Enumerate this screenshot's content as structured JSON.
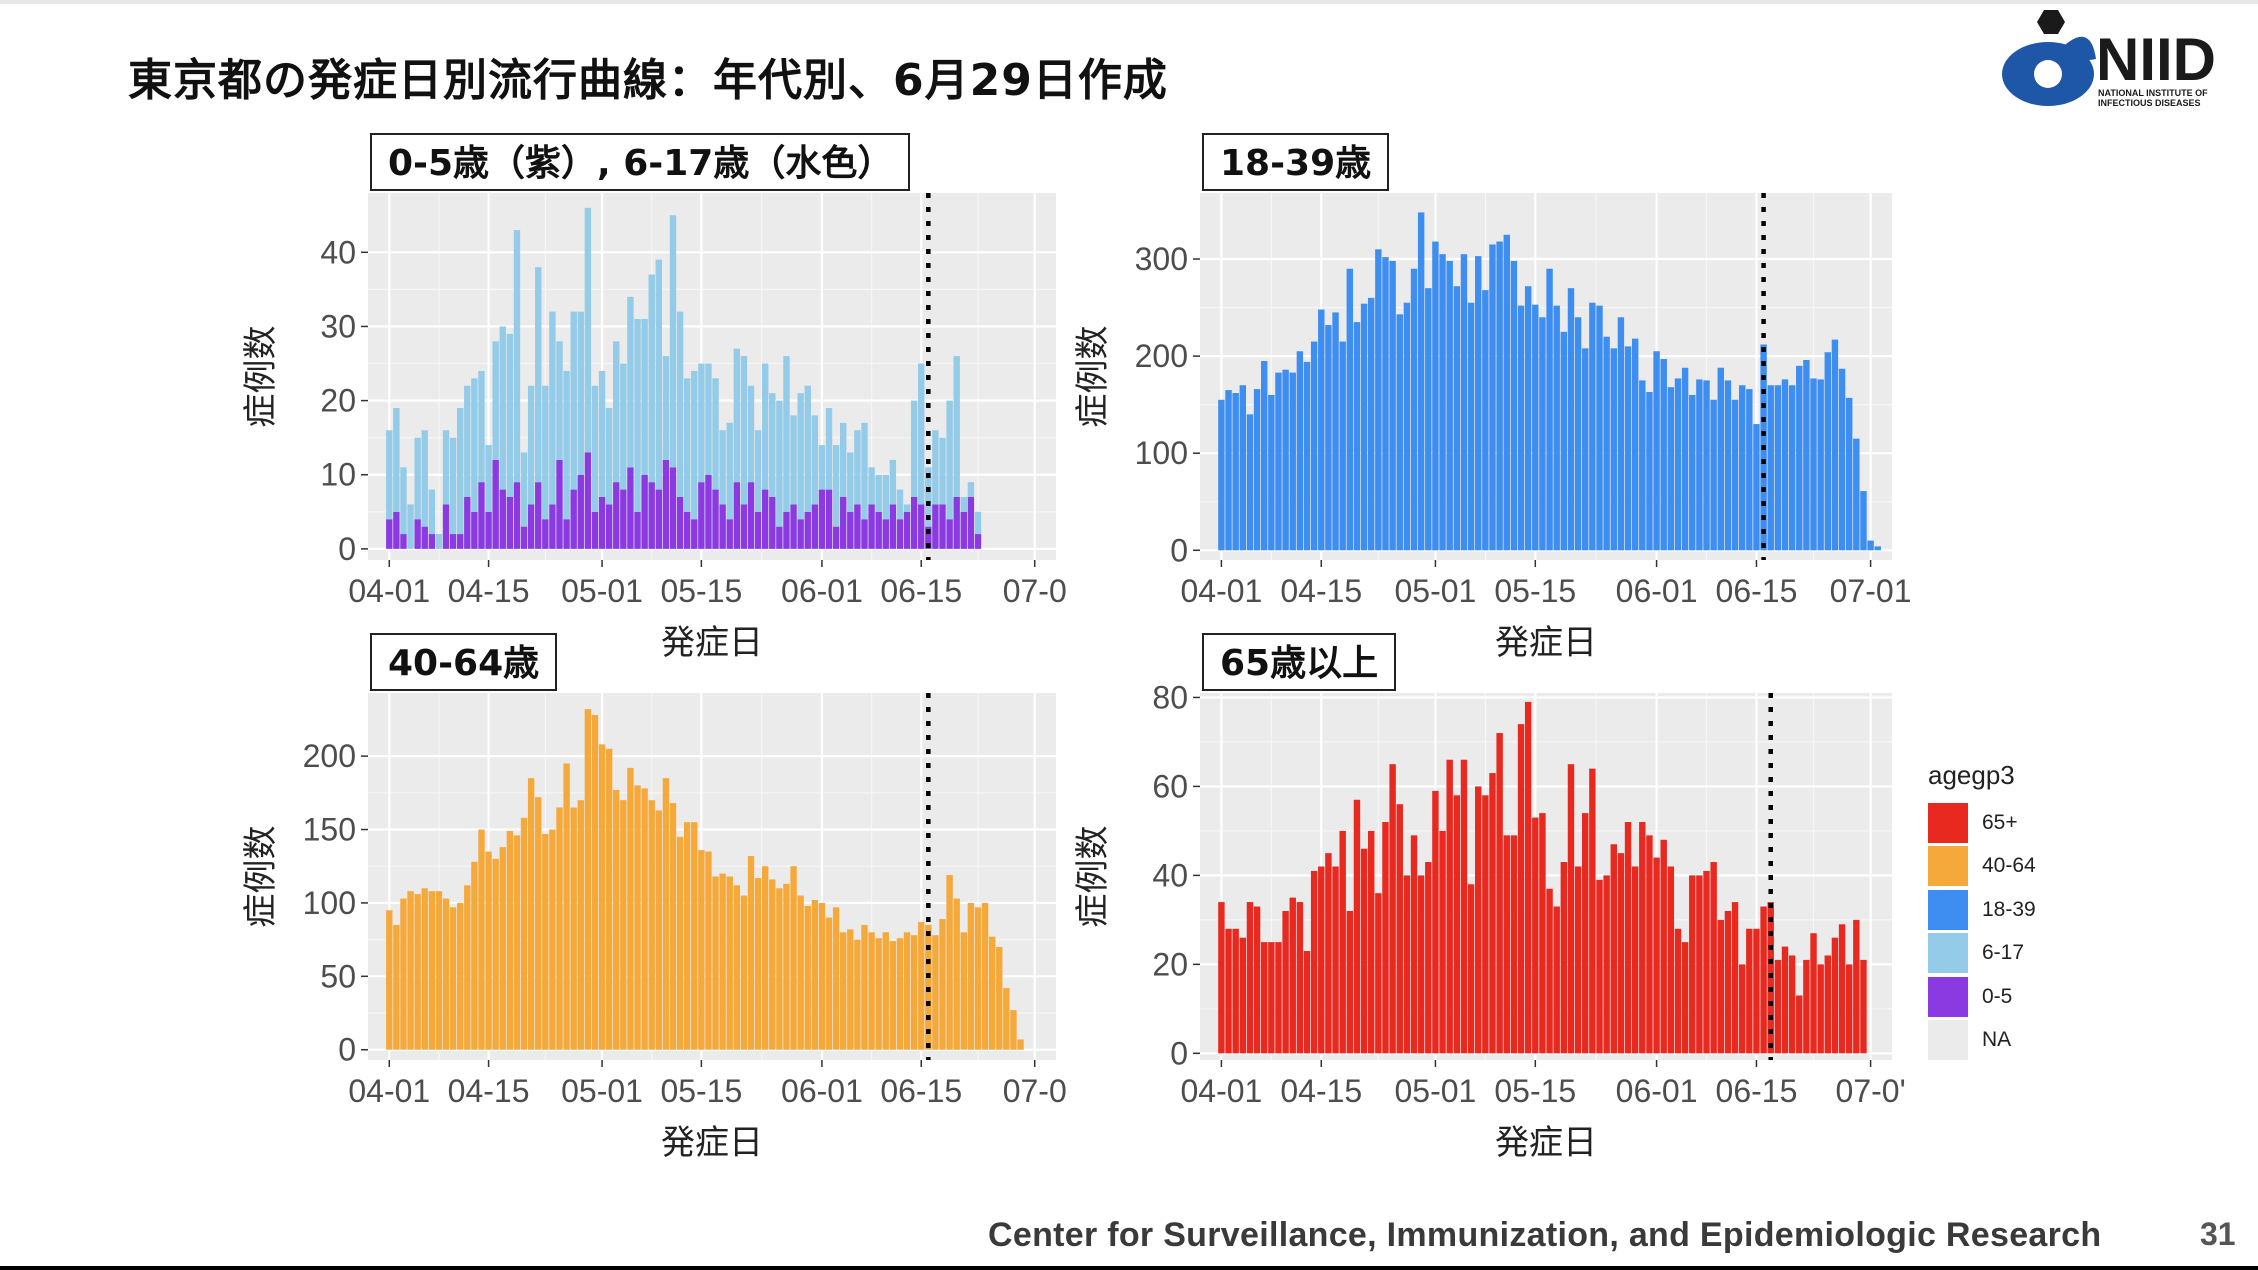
{
  "slide": {
    "title": "東京都の発症日別流行曲線：年代別、6月29日作成",
    "footer": "Center for Surveillance, Immunization, and Epidemiologic Research",
    "page_number": "31",
    "logo_text": "NIID",
    "logo_subtext_1": "NATIONAL INSTITUTE OF",
    "logo_subtext_2": "INFECTIOUS DISEASES"
  },
  "legend": {
    "title": "agegp3",
    "items": [
      {
        "label": "65+",
        "color": "#e8291f"
      },
      {
        "label": "40-64",
        "color": "#f5a93b"
      },
      {
        "label": "18-39",
        "color": "#3d8ef0"
      },
      {
        "label": "6-17",
        "color": "#93cbe8"
      },
      {
        "label": "0-5",
        "color": "#8a3ae0"
      },
      {
        "label": "NA",
        "color": "#ebebeb"
      }
    ]
  },
  "chart_data": [
    {
      "type": "bar",
      "stacked": true,
      "panel_label": "0-5歳（紫）, 6-17歳（水色）",
      "xlabel": "発症日",
      "ylabel": "症例数",
      "x_tick_labels": [
        "04-01",
        "04-15",
        "05-01",
        "05-15",
        "06-01",
        "06-15",
        "07-0"
      ],
      "x_ticks": [
        "2020-04-01",
        "2020-04-15",
        "2020-05-01",
        "2020-05-15",
        "2020-06-01",
        "2020-06-15",
        "2020-07-01"
      ],
      "y_ticks": [
        0,
        10,
        20,
        30,
        40
      ],
      "ylim": [
        -1.5,
        48
      ],
      "xlim": [
        "2020-03-29",
        "2020-07-04"
      ],
      "date_start": "2020-04-01",
      "reference_line": "2020-06-16",
      "series": [
        {
          "name": "0-5",
          "color": "#8a3ae0",
          "values": [
            4,
            5,
            2,
            0,
            4,
            3,
            2,
            0,
            6,
            2,
            2,
            7,
            5,
            9,
            5,
            12,
            8,
            7,
            9,
            3,
            6,
            9,
            4,
            6,
            12,
            4,
            8,
            10,
            13,
            5,
            7,
            6,
            9,
            8,
            11,
            5,
            10,
            9,
            8,
            12,
            11,
            7,
            5,
            4,
            9,
            10,
            8,
            6,
            4,
            9,
            6,
            9,
            5,
            8,
            7,
            3,
            5,
            6,
            4,
            5,
            6,
            8,
            8,
            3,
            7,
            5,
            6,
            4,
            6,
            5,
            4,
            6,
            4,
            5,
            7,
            6,
            3,
            6,
            6,
            4,
            7,
            5,
            7,
            2
          ]
        },
        {
          "name": "6-17",
          "color": "#93cbe8",
          "values": [
            12,
            14,
            9,
            6,
            11,
            13,
            6,
            2,
            10,
            13,
            17,
            15,
            18,
            15,
            9,
            16,
            22,
            22,
            34,
            10,
            16,
            29,
            18,
            26,
            16,
            20,
            24,
            22,
            33,
            17,
            17,
            13,
            19,
            17,
            23,
            26,
            21,
            28,
            31,
            14,
            34,
            25,
            18,
            20,
            16,
            15,
            15,
            10,
            13,
            18,
            20,
            13,
            11,
            17,
            14,
            17,
            21,
            12,
            17,
            17,
            12,
            6,
            11,
            11,
            10,
            8,
            10,
            13,
            5,
            5,
            6,
            6,
            4,
            1,
            13,
            19,
            8,
            10,
            9,
            16,
            19,
            2,
            2,
            3
          ]
        }
      ]
    },
    {
      "type": "bar",
      "panel_label": "18-39歳",
      "xlabel": "発症日",
      "ylabel": "症例数",
      "x_tick_labels": [
        "04-01",
        "04-15",
        "05-01",
        "05-15",
        "06-01",
        "06-15",
        "07-01"
      ],
      "x_ticks": [
        "2020-04-01",
        "2020-04-15",
        "2020-05-01",
        "2020-05-15",
        "2020-06-01",
        "2020-06-15",
        "2020-07-01"
      ],
      "y_ticks": [
        0,
        100,
        200,
        300
      ],
      "ylim": [
        -10,
        368
      ],
      "xlim": [
        "2020-03-29",
        "2020-07-04"
      ],
      "date_start": "2020-04-01",
      "reference_line": "2020-06-16",
      "series": [
        {
          "name": "18-39",
          "color": "#3d8ef0",
          "values": [
            155,
            165,
            162,
            170,
            140,
            166,
            195,
            160,
            183,
            186,
            183,
            205,
            194,
            215,
            248,
            232,
            245,
            215,
            290,
            235,
            254,
            260,
            310,
            302,
            298,
            243,
            255,
            290,
            348,
            270,
            318,
            305,
            298,
            272,
            305,
            255,
            303,
            268,
            315,
            318,
            325,
            298,
            252,
            272,
            253,
            240,
            290,
            252,
            225,
            270,
            240,
            208,
            255,
            252,
            220,
            208,
            240,
            210,
            218,
            175,
            163,
            205,
            197,
            168,
            177,
            188,
            160,
            176,
            175,
            155,
            188,
            175,
            155,
            170,
            166,
            130,
            212,
            170,
            170,
            176,
            170,
            190,
            196,
            177,
            176,
            204,
            217,
            187,
            157,
            115,
            61,
            10,
            4
          ]
        }
      ]
    },
    {
      "type": "bar",
      "panel_label": "40-64歳",
      "xlabel": "発症日",
      "ylabel": "症例数",
      "x_tick_labels": [
        "04-01",
        "04-15",
        "05-01",
        "05-15",
        "06-01",
        "06-15",
        "07-0"
      ],
      "x_ticks": [
        "2020-04-01",
        "2020-04-15",
        "2020-05-01",
        "2020-05-15",
        "2020-06-01",
        "2020-06-15",
        "2020-07-01"
      ],
      "y_ticks": [
        0,
        50,
        100,
        150,
        200
      ],
      "ylim": [
        -7,
        243
      ],
      "xlim": [
        "2020-03-29",
        "2020-07-04"
      ],
      "date_start": "2020-04-01",
      "reference_line": "2020-06-16",
      "series": [
        {
          "name": "40-64",
          "color": "#f5a93b",
          "values": [
            95,
            85,
            103,
            108,
            106,
            110,
            108,
            108,
            103,
            97,
            100,
            112,
            128,
            150,
            135,
            130,
            138,
            149,
            146,
            158,
            185,
            172,
            147,
            150,
            165,
            195,
            165,
            170,
            232,
            228,
            208,
            205,
            177,
            170,
            192,
            180,
            178,
            170,
            163,
            185,
            168,
            145,
            155,
            155,
            136,
            135,
            118,
            120,
            118,
            112,
            105,
            132,
            117,
            125,
            116,
            110,
            113,
            125,
            105,
            98,
            102,
            100,
            90,
            97,
            80,
            82,
            75,
            85,
            80,
            76,
            80,
            74,
            76,
            80,
            78,
            87,
            85,
            78,
            89,
            119,
            103,
            80,
            100,
            97,
            100,
            77,
            70,
            42,
            27,
            7
          ]
        }
      ]
    },
    {
      "type": "bar",
      "panel_label": "65歳以上",
      "xlabel": "発症日",
      "ylabel": "症例数",
      "x_tick_labels": [
        "04-01",
        "04-15",
        "05-01",
        "05-15",
        "06-01",
        "06-15",
        "07-0'"
      ],
      "x_ticks": [
        "2020-04-01",
        "2020-04-15",
        "2020-05-01",
        "2020-05-15",
        "2020-06-01",
        "2020-06-15",
        "2020-07-01"
      ],
      "y_ticks": [
        0,
        20,
        40,
        60,
        80
      ],
      "ylim": [
        -1.5,
        81
      ],
      "xlim": [
        "2020-03-29",
        "2020-07-04"
      ],
      "date_start": "2020-04-01",
      "reference_line": "2020-06-17",
      "series": [
        {
          "name": "65+",
          "color": "#e8291f",
          "values": [
            34,
            28,
            28,
            26,
            34,
            33,
            25,
            25,
            25,
            32,
            35,
            34,
            23,
            41,
            42,
            45,
            42,
            50,
            32,
            57,
            46,
            50,
            36,
            52,
            65,
            56,
            40,
            49,
            40,
            43,
            59,
            50,
            66,
            58,
            66,
            38,
            60,
            58,
            63,
            72,
            49,
            49,
            74,
            79,
            53,
            54,
            37,
            33,
            43,
            65,
            42,
            54,
            64,
            39,
            40,
            47,
            45,
            52,
            42,
            52,
            49,
            44,
            48,
            42,
            28,
            25,
            40,
            40,
            41,
            43,
            30,
            32,
            34,
            20,
            28,
            28,
            33,
            34,
            21,
            24,
            22,
            13,
            21,
            27,
            20,
            22,
            26,
            29,
            20,
            30,
            21
          ]
        }
      ]
    }
  ]
}
